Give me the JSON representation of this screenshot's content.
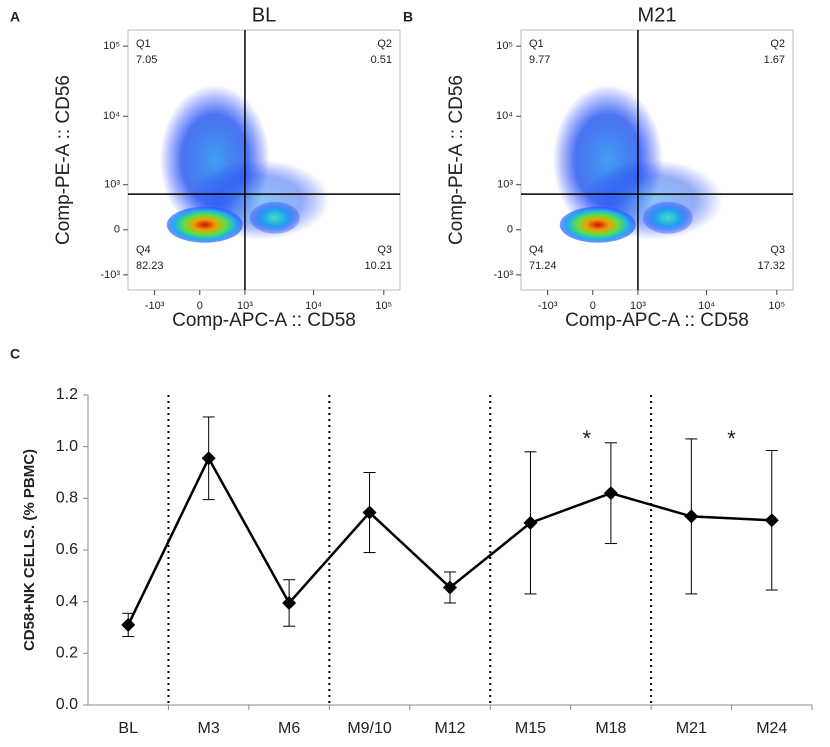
{
  "chart_data": [
    {
      "type": "flow",
      "panel": "A",
      "title": "BL",
      "xlabel": "Comp-APC-A :: CD58",
      "ylabel": "Comp-PE-A :: CD56",
      "xlim": [
        -2500,
        170000
      ],
      "ylim": [
        -1700,
        170000
      ],
      "xticks": [
        {
          "value": -1000,
          "label": "-10³"
        },
        0,
        {
          "value": 1000,
          "label": "10³"
        },
        {
          "value": 10000,
          "label": "10⁴"
        },
        {
          "value": 100000,
          "label": "10⁵"
        }
      ],
      "yticks": [
        {
          "value": -1000,
          "label": "-10³"
        },
        0,
        {
          "value": 1000,
          "label": "10³"
        },
        {
          "value": 10000,
          "label": "10⁴"
        },
        {
          "value": 100000,
          "label": "10⁵"
        }
      ],
      "gates": {
        "x": 1000,
        "y": 700
      },
      "quadrants": [
        {
          "name": "Q1",
          "value": 7.05
        },
        {
          "name": "Q2",
          "value": 0.51
        },
        {
          "name": "Q3",
          "value": 10.21
        },
        {
          "name": "Q4",
          "value": 82.23
        }
      ]
    },
    {
      "type": "flow",
      "panel": "B",
      "title": "M21",
      "xlabel": "Comp-APC-A :: CD58",
      "ylabel": "Comp-PE-A :: CD56",
      "xlim": [
        -2500,
        170000
      ],
      "ylim": [
        -1700,
        170000
      ],
      "xticks": [
        {
          "value": -1000,
          "label": "-10³"
        },
        0,
        {
          "value": 1000,
          "label": "10³"
        },
        {
          "value": 10000,
          "label": "10⁴"
        },
        {
          "value": 100000,
          "label": "10⁵"
        }
      ],
      "yticks": [
        {
          "value": -1000,
          "label": "-10³"
        },
        0,
        {
          "value": 1000,
          "label": "10³"
        },
        {
          "value": 10000,
          "label": "10⁴"
        },
        {
          "value": 100000,
          "label": "10⁵"
        }
      ],
      "gates": {
        "x": 1000,
        "y": 700
      },
      "quadrants": [
        {
          "name": "Q1",
          "value": 9.77
        },
        {
          "name": "Q2",
          "value": 1.67
        },
        {
          "name": "Q3",
          "value": 17.32
        },
        {
          "name": "Q4",
          "value": 71.24
        }
      ]
    },
    {
      "type": "line",
      "panel": "C",
      "ylabel": "CD58+NK CELLS. (% PBMC)",
      "categories": [
        "BL",
        "M3",
        "M6",
        "M9/10",
        "M12",
        "M15",
        "M18",
        "M21",
        "M24"
      ],
      "values": [
        0.31,
        0.955,
        0.395,
        0.745,
        0.455,
        0.705,
        0.82,
        0.73,
        0.715
      ],
      "errors": [
        0.045,
        0.16,
        0.09,
        0.155,
        0.06,
        0.275,
        0.195,
        0.3,
        0.27
      ],
      "color": "#000000",
      "ylim": [
        0,
        1.2
      ],
      "yticks": [
        {
          "value": 0,
          "label": "0.0"
        },
        {
          "value": 0.2,
          "label": "0.2"
        },
        {
          "value": 0.4,
          "label": "0.4"
        },
        {
          "value": 0.6,
          "label": "0.6"
        },
        {
          "value": 0.8,
          "label": "0.8"
        },
        {
          "value": 1,
          "label": "1.0"
        },
        {
          "value": 1.2,
          "label": "1.2"
        }
      ],
      "annotations": [
        "*",
        "*"
      ]
    }
  ]
}
